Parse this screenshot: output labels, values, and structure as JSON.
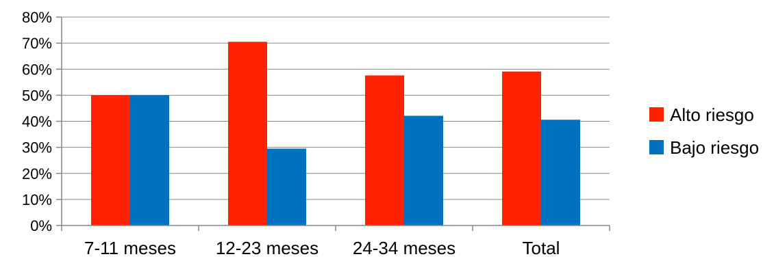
{
  "chart_data": {
    "type": "bar",
    "categories": [
      "7-11 meses",
      "12-23 meses",
      "24-34 meses",
      "Total"
    ],
    "series": [
      {
        "name": "Alto riesgo",
        "color": "#ff2200",
        "values": [
          50,
          70.5,
          57.6,
          59.1
        ]
      },
      {
        "name": "Bajo riesgo",
        "color": "#0070c0",
        "values": [
          50,
          29.5,
          42.1,
          40.6
        ]
      }
    ],
    "ylim": [
      0,
      80
    ],
    "yticks": [
      0,
      10,
      20,
      30,
      40,
      50,
      60,
      70,
      80
    ],
    "ytick_labels": [
      "0%",
      "10%",
      "20%",
      "30%",
      "40%",
      "50%",
      "60%",
      "70%",
      "80%"
    ],
    "grid": true,
    "legend_position": "right"
  }
}
